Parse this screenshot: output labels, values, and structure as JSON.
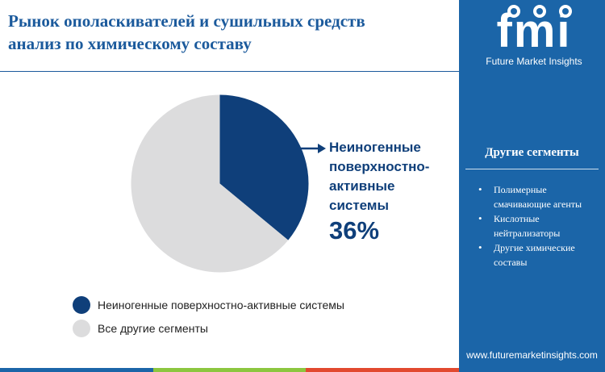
{
  "title": {
    "line1": "Рынок ополаскивателей и сушильных средств",
    "line2": "анализ по химическому составу"
  },
  "chart_data": {
    "type": "pie",
    "slices": [
      {
        "label": "Неиногенные поверхностно-активные системы",
        "value": 36,
        "color": "#0f3f7a"
      },
      {
        "label": "Все другие сегменты",
        "value": 64,
        "color": "#dcdcdd"
      }
    ],
    "callout": {
      "lines": [
        "Неиногенные",
        "поверхностно-",
        "активные",
        "системы"
      ],
      "value": "36%"
    },
    "legend_position": "bottom-left"
  },
  "legend": {
    "items": [
      {
        "label": "Неиногенные поверхностно-активные системы",
        "color": "#0f3f7a"
      },
      {
        "label": "Все другие сегменты",
        "color": "#dcdcdd"
      }
    ]
  },
  "sidebar": {
    "logo_letters": "fmi",
    "logo_tagline": "Future Market Insights",
    "heading": "Другие сегменты",
    "items": [
      "Полимерные смачивающие агенты",
      "Кислотные нейтрализаторы",
      "Другие химические составы"
    ],
    "url": "www.futuremarketinsights.com"
  },
  "bottom_bar_colors": [
    "#1b65a8",
    "#8cc63f",
    "#e2492f"
  ],
  "colors": {
    "accent": "#1b65a8",
    "title": "#1b5a9c"
  }
}
